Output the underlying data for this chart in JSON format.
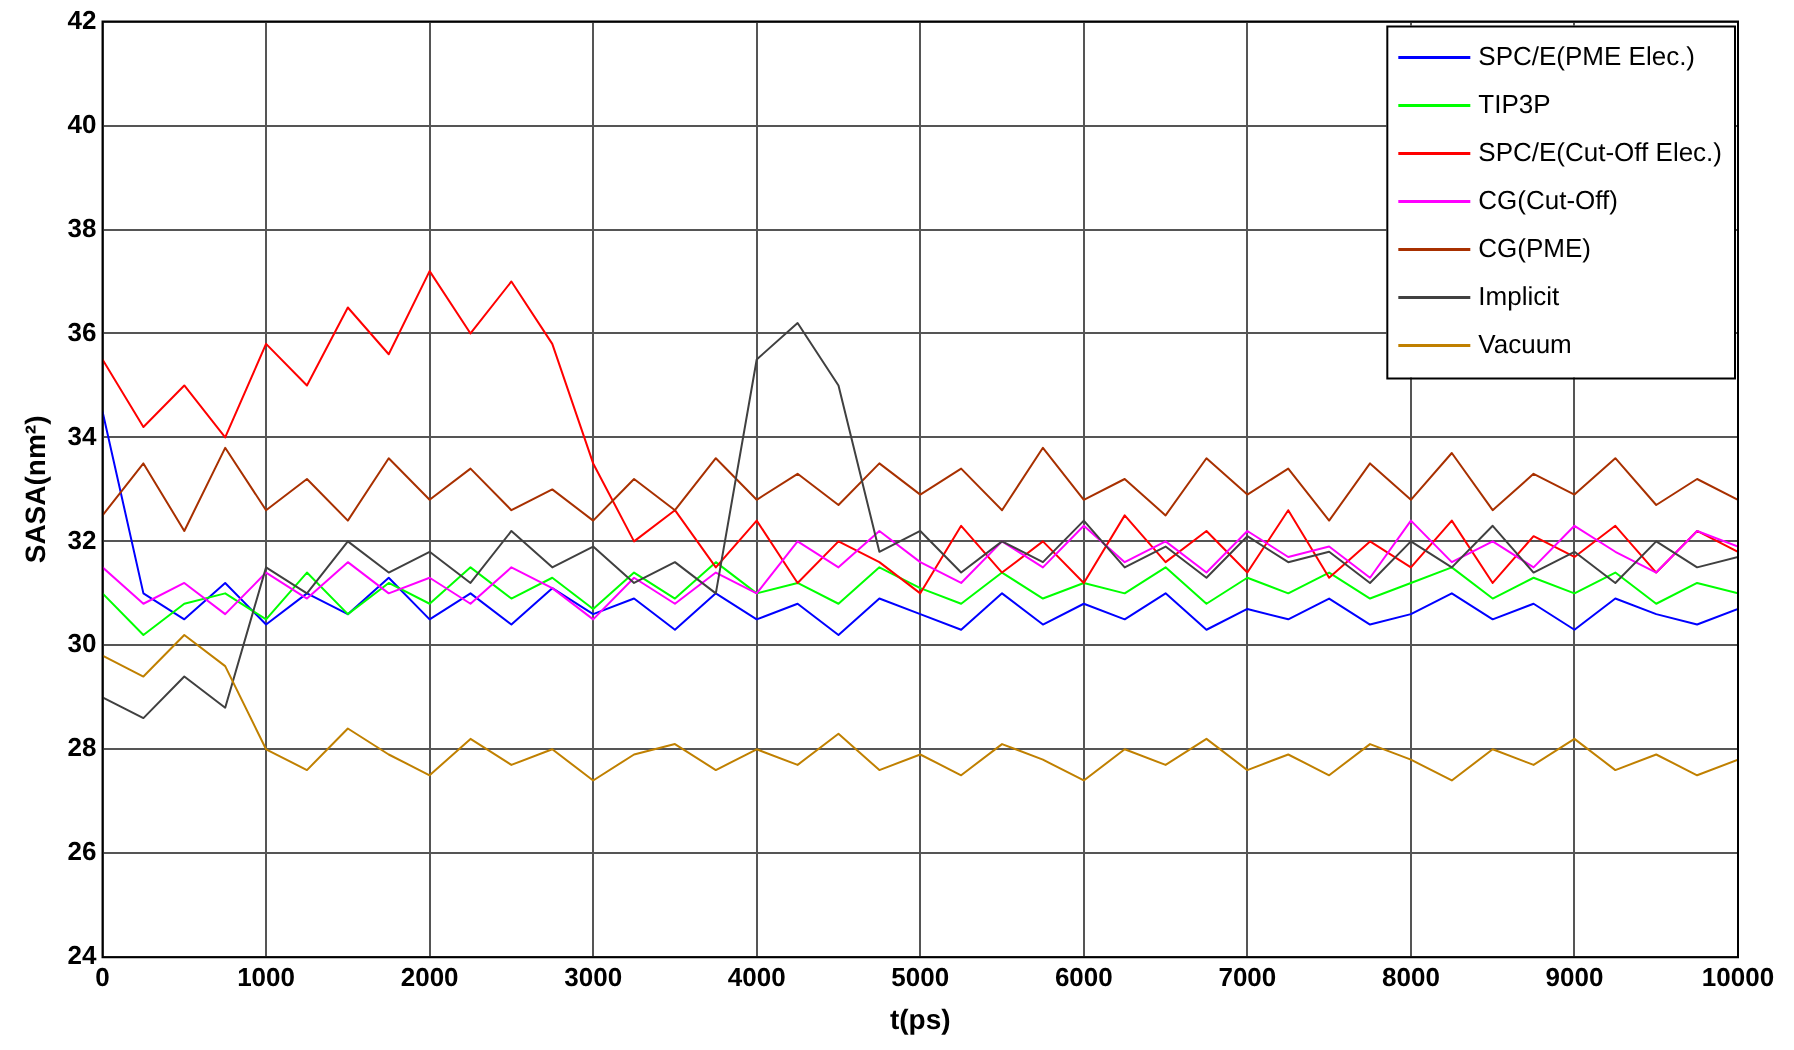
{
  "chart_data": {
    "type": "line",
    "xlabel": "t(ps)",
    "ylabel": "SASA(nm²)",
    "xlim": [
      0,
      10000
    ],
    "xticks": [
      0,
      1000,
      2000,
      3000,
      4000,
      5000,
      6000,
      7000,
      8000,
      9000,
      10000
    ],
    "ylim": [
      24,
      42
    ],
    "yticks": [
      24,
      26,
      28,
      30,
      32,
      34,
      36,
      38,
      40,
      42
    ],
    "grid": true,
    "legend": "top right",
    "marker": "none",
    "x": [
      0,
      250,
      500,
      750,
      1000,
      1250,
      1500,
      1750,
      2000,
      2250,
      2500,
      2750,
      3000,
      3250,
      3500,
      3750,
      4000,
      4250,
      4500,
      4750,
      5000,
      5250,
      5500,
      5750,
      6000,
      6250,
      6500,
      6750,
      7000,
      7250,
      7500,
      7750,
      8000,
      8250,
      8500,
      8750,
      9000,
      9250,
      9500,
      9750,
      10000
    ],
    "series": [
      {
        "name": "SPC/E(PME Elec.)",
        "color": "#0000ff",
        "values": [
          34.5,
          31.0,
          30.5,
          31.2,
          30.4,
          31.0,
          30.6,
          31.3,
          30.5,
          31.0,
          30.4,
          31.1,
          30.6,
          30.9,
          30.3,
          31.0,
          30.5,
          30.8,
          30.2,
          30.9,
          30.6,
          30.3,
          31.0,
          30.4,
          30.8,
          30.5,
          31.0,
          30.3,
          30.7,
          30.5,
          30.9,
          30.4,
          30.6,
          31.0,
          30.5,
          30.8,
          30.3,
          30.9,
          30.6,
          30.4,
          30.7
        ]
      },
      {
        "name": "TIP3P",
        "color": "#00ff00",
        "values": [
          31.0,
          30.2,
          30.8,
          31.0,
          30.5,
          31.4,
          30.6,
          31.2,
          30.8,
          31.5,
          30.9,
          31.3,
          30.7,
          31.4,
          30.9,
          31.6,
          31.0,
          31.2,
          30.8,
          31.5,
          31.1,
          30.8,
          31.4,
          30.9,
          31.2,
          31.0,
          31.5,
          30.8,
          31.3,
          31.0,
          31.4,
          30.9,
          31.2,
          31.5,
          30.9,
          31.3,
          31.0,
          31.4,
          30.8,
          31.2,
          31.0
        ]
      },
      {
        "name": "SPC/E(Cut-Off Elec.)",
        "color": "#ff0000",
        "values": [
          35.5,
          34.2,
          35.0,
          34.0,
          35.8,
          35.0,
          36.5,
          35.6,
          37.2,
          36.0,
          37.0,
          35.8,
          33.5,
          32.0,
          32.6,
          31.5,
          32.4,
          31.2,
          32.0,
          31.6,
          31.0,
          32.3,
          31.4,
          32.0,
          31.2,
          32.5,
          31.6,
          32.2,
          31.4,
          32.6,
          31.3,
          32.0,
          31.5,
          32.4,
          31.2,
          32.1,
          31.7,
          32.3,
          31.4,
          32.2,
          31.8
        ]
      },
      {
        "name": "CG(Cut-Off)",
        "color": "#ff00ff",
        "values": [
          31.5,
          30.8,
          31.2,
          30.6,
          31.4,
          30.9,
          31.6,
          31.0,
          31.3,
          30.8,
          31.5,
          31.1,
          30.5,
          31.3,
          30.8,
          31.4,
          31.0,
          32.0,
          31.5,
          32.2,
          31.6,
          31.2,
          32.0,
          31.5,
          32.3,
          31.6,
          32.0,
          31.4,
          32.2,
          31.7,
          31.9,
          31.3,
          32.4,
          31.6,
          32.0,
          31.5,
          32.3,
          31.8,
          31.4,
          32.2,
          31.9
        ]
      },
      {
        "name": "CG(PME)",
        "color": "#a83000",
        "values": [
          32.5,
          33.5,
          32.2,
          33.8,
          32.6,
          33.2,
          32.4,
          33.6,
          32.8,
          33.4,
          32.6,
          33.0,
          32.4,
          33.2,
          32.6,
          33.6,
          32.8,
          33.3,
          32.7,
          33.5,
          32.9,
          33.4,
          32.6,
          33.8,
          32.8,
          33.2,
          32.5,
          33.6,
          32.9,
          33.4,
          32.4,
          33.5,
          32.8,
          33.7,
          32.6,
          33.3,
          32.9,
          33.6,
          32.7,
          33.2,
          32.8
        ]
      },
      {
        "name": "Implicit",
        "color": "#404040",
        "values": [
          29.0,
          28.6,
          29.4,
          28.8,
          31.5,
          31.0,
          32.0,
          31.4,
          31.8,
          31.2,
          32.2,
          31.5,
          31.9,
          31.2,
          31.6,
          31.0,
          35.5,
          36.2,
          35.0,
          31.8,
          32.2,
          31.4,
          32.0,
          31.6,
          32.4,
          31.5,
          31.9,
          31.3,
          32.1,
          31.6,
          31.8,
          31.2,
          32.0,
          31.5,
          32.3,
          31.4,
          31.8,
          31.2,
          32.0,
          31.5,
          31.7
        ]
      },
      {
        "name": "Vacuum",
        "color": "#c08000",
        "values": [
          29.8,
          29.4,
          30.2,
          29.6,
          28.0,
          27.6,
          28.4,
          27.9,
          27.5,
          28.2,
          27.7,
          28.0,
          27.4,
          27.9,
          28.1,
          27.6,
          28.0,
          27.7,
          28.3,
          27.6,
          27.9,
          27.5,
          28.1,
          27.8,
          27.4,
          28.0,
          27.7,
          28.2,
          27.6,
          27.9,
          27.5,
          28.1,
          27.8,
          27.4,
          28.0,
          27.7,
          28.2,
          27.6,
          27.9,
          27.5,
          27.8
        ]
      }
    ]
  }
}
